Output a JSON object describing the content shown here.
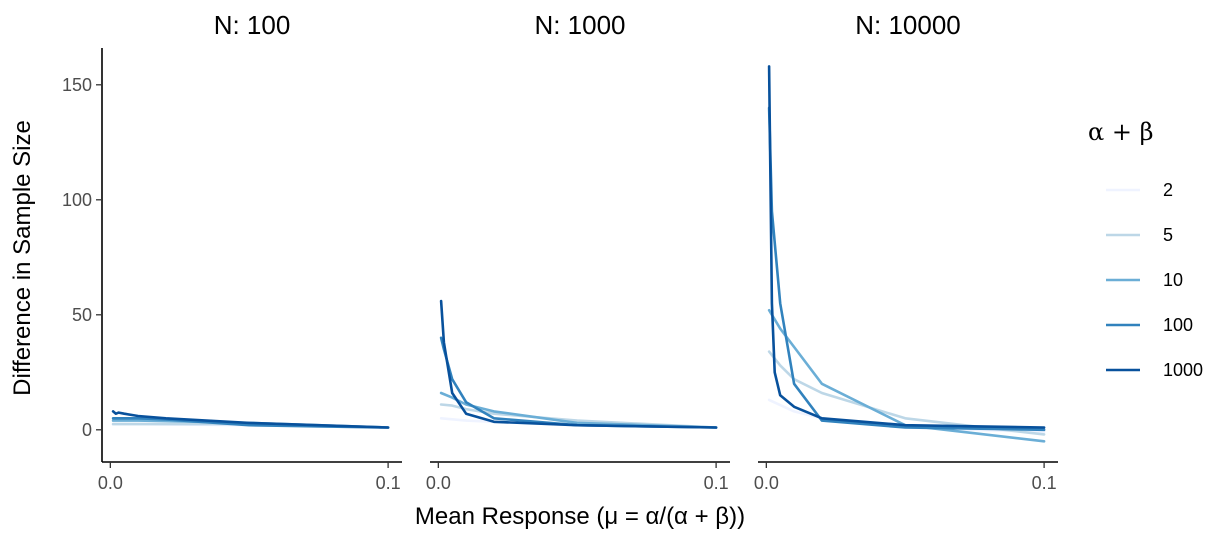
{
  "chart_data": {
    "type": "line",
    "facet_label_prefix": "N: ",
    "ylabel": "Difference in Sample Size",
    "xlabel": "Mean Response (μ = α/(α + β))",
    "x_ticks": [
      0.0,
      0.1
    ],
    "x_tick_labels": [
      "0.0",
      "0.1"
    ],
    "y_ticks": [
      0,
      50,
      100,
      150
    ],
    "y_tick_labels": [
      "0",
      "50",
      "100",
      "150"
    ],
    "xlim": [
      -0.003,
      0.105
    ],
    "ylim": [
      -14,
      166
    ],
    "grid": false,
    "legend": {
      "title": "α + β",
      "position": "right",
      "entries": [
        {
          "label": "2",
          "color": "#eff3ff"
        },
        {
          "label": "5",
          "color": "#bdd7e7"
        },
        {
          "label": "10",
          "color": "#6baed6"
        },
        {
          "label": "100",
          "color": "#3182bd"
        },
        {
          "label": "1000",
          "color": "#08519c"
        }
      ]
    },
    "facets": [
      {
        "label": "100",
        "series": [
          {
            "name": "2",
            "x": [
              0.001,
              0.01,
              0.02,
              0.05,
              0.1
            ],
            "y": [
              2.5,
              2.5,
              2.3,
              2.0,
              1.0
            ]
          },
          {
            "name": "5",
            "x": [
              0.001,
              0.01,
              0.02,
              0.05,
              0.1
            ],
            "y": [
              2.5,
              2.5,
              2.5,
              2.5,
              1.0
            ]
          },
          {
            "name": "10",
            "x": [
              0.001,
              0.01,
              0.02,
              0.05,
              0.1
            ],
            "y": [
              4.0,
              4.0,
              3.8,
              3.0,
              1.0
            ]
          },
          {
            "name": "100",
            "x": [
              0.001,
              0.01,
              0.02,
              0.05,
              0.1
            ],
            "y": [
              5.0,
              5.0,
              4.5,
              2.0,
              1.0
            ]
          },
          {
            "name": "1000",
            "x": [
              0.001,
              0.002,
              0.003,
              0.005,
              0.01,
              0.02,
              0.05,
              0.1
            ],
            "y": [
              8.0,
              7.0,
              7.5,
              7.0,
              6.0,
              5.0,
              3.0,
              1.0
            ]
          }
        ]
      },
      {
        "label": "1000",
        "series": [
          {
            "name": "2",
            "x": [
              0.001,
              0.01,
              0.02,
              0.05,
              0.1
            ],
            "y": [
              5.0,
              4.0,
              3.5,
              2.0,
              1.0
            ]
          },
          {
            "name": "5",
            "x": [
              0.001,
              0.005,
              0.01,
              0.02,
              0.05,
              0.1
            ],
            "y": [
              11.0,
              10.5,
              9.0,
              7.0,
              4.0,
              1.0
            ]
          },
          {
            "name": "10",
            "x": [
              0.001,
              0.005,
              0.01,
              0.02,
              0.05,
              0.1
            ],
            "y": [
              16.0,
              14.0,
              11.0,
              8.0,
              3.0,
              1.0
            ]
          },
          {
            "name": "100",
            "x": [
              0.001,
              0.002,
              0.005,
              0.01,
              0.02,
              0.05,
              0.1
            ],
            "y": [
              40.0,
              35.0,
              22.0,
              12.0,
              5.0,
              2.0,
              1.0
            ]
          },
          {
            "name": "1000",
            "x": [
              0.001,
              0.002,
              0.005,
              0.01,
              0.02,
              0.05,
              0.1
            ],
            "y": [
              56.0,
              38.0,
              16.0,
              7.0,
              3.5,
              2.0,
              1.0
            ]
          }
        ]
      },
      {
        "label": "10000",
        "series": [
          {
            "name": "2",
            "x": [
              0.001,
              0.01,
              0.02,
              0.05,
              0.1
            ],
            "y": [
              13.0,
              8.0,
              5.0,
              1.0,
              -1.0
            ]
          },
          {
            "name": "5",
            "x": [
              0.001,
              0.005,
              0.01,
              0.02,
              0.05,
              0.1
            ],
            "y": [
              34.0,
              28.0,
              22.0,
              16.0,
              5.0,
              -2.0
            ]
          },
          {
            "name": "10",
            "x": [
              0.001,
              0.005,
              0.01,
              0.02,
              0.05,
              0.1
            ],
            "y": [
              52.0,
              44.0,
              36.0,
              20.0,
              2.0,
              -5.0
            ]
          },
          {
            "name": "100",
            "x": [
              0.001,
              0.002,
              0.005,
              0.01,
              0.02,
              0.05,
              0.1
            ],
            "y": [
              140.0,
              95.0,
              55.0,
              20.0,
              4.0,
              1.0,
              0.0
            ]
          },
          {
            "name": "1000",
            "x": [
              0.001,
              0.002,
              0.003,
              0.005,
              0.01,
              0.02,
              0.05,
              0.1
            ],
            "y": [
              158.0,
              55.0,
              25.0,
              15.0,
              10.0,
              5.0,
              2.0,
              1.0
            ]
          }
        ]
      }
    ]
  }
}
